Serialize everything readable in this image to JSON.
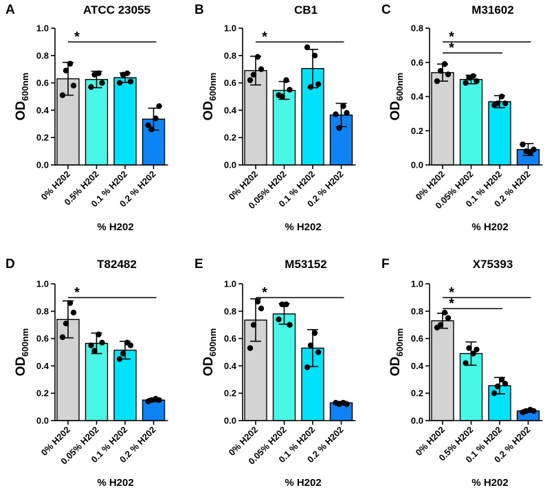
{
  "colors": {
    "bar_fills": [
      "#d3d3d3",
      "#48f7e6",
      "#00e2fa",
      "#0d83f5"
    ],
    "stroke": "#000000"
  },
  "chart_data": [
    {
      "panel": "A",
      "title": "ATCC 23055",
      "type": "bar",
      "categories": [
        "0% H202",
        "0.5% H202",
        "0.1 % H202",
        "0.2 % H202"
      ],
      "values": [
        0.63,
        0.625,
        0.638,
        0.335
      ],
      "errors": [
        0.12,
        0.06,
        0.035,
        0.08
      ],
      "points": [
        [
          0.51,
          0.69,
          0.74,
          0.58
        ],
        [
          0.57,
          0.66,
          0.67,
          0.6
        ],
        [
          0.6,
          0.66,
          0.67,
          0.61
        ],
        [
          0.29,
          0.26,
          0.34,
          0.43
        ]
      ],
      "xlabel": "% H202",
      "ylabel": "OD",
      "ylabel_sub": "600nm",
      "ylim": [
        0,
        1.0
      ],
      "yticks": [
        0.0,
        0.2,
        0.4,
        0.6,
        0.8,
        1.0
      ],
      "ytick_labels": [
        "0.0",
        "0.2",
        "0.4",
        "0.6",
        "0.8",
        "1.0"
      ],
      "significance": [
        {
          "from": 0,
          "to": 3,
          "label": "*"
        }
      ]
    },
    {
      "panel": "B",
      "title": "CB1",
      "type": "bar",
      "categories": [
        "0% H202",
        "0.05% H202",
        "0.1 % H202",
        "0.2 % H202"
      ],
      "values": [
        0.69,
        0.545,
        0.705,
        0.365
      ],
      "errors": [
        0.105,
        0.065,
        0.14,
        0.085
      ],
      "points": [
        [
          0.62,
          0.66,
          0.79,
          0.7
        ],
        [
          0.51,
          0.5,
          0.62,
          0.55
        ],
        [
          0.86,
          0.57,
          0.8,
          0.59
        ],
        [
          0.37,
          0.27,
          0.43,
          0.38
        ]
      ],
      "xlabel": "% H202",
      "ylabel": "OD",
      "ylabel_sub": "600nm",
      "ylim": [
        0,
        1.0
      ],
      "yticks": [
        0.0,
        0.2,
        0.4,
        0.6,
        0.8,
        1.0
      ],
      "ytick_labels": [
        "0.0",
        "0.2",
        "0.4",
        "0.6",
        "0.8",
        "1.0"
      ],
      "significance": [
        {
          "from": 0,
          "to": 3,
          "label": "*"
        }
      ]
    },
    {
      "panel": "C",
      "title": "M31602",
      "type": "bar",
      "categories": [
        "0% H202",
        "0.05% H202",
        "0.1 % H202",
        "0.2 % H202"
      ],
      "values": [
        0.54,
        0.5,
        0.37,
        0.09
      ],
      "errors": [
        0.05,
        0.025,
        0.035,
        0.035
      ],
      "points": [
        [
          0.49,
          0.55,
          0.59,
          0.53
        ],
        [
          0.48,
          0.51,
          0.52,
          0.49
        ],
        [
          0.35,
          0.36,
          0.4,
          0.36
        ],
        [
          0.12,
          0.08,
          0.07,
          0.09
        ]
      ],
      "xlabel": "% H202",
      "ylabel": "OD",
      "ylabel_sub": "600nm",
      "ylim": [
        0,
        0.8
      ],
      "yticks": [
        0.0,
        0.2,
        0.4,
        0.6,
        0.8
      ],
      "ytick_labels": [
        "0.0",
        "0.2",
        "0.4",
        "0.6",
        "0.8"
      ],
      "significance": [
        {
          "from": 0,
          "to": 3,
          "label": "*"
        },
        {
          "from": 0,
          "to": 2,
          "label": "*"
        }
      ]
    },
    {
      "panel": "D",
      "title": "T82482",
      "type": "bar",
      "categories": [
        "0% H202",
        "0.05% H202",
        "0.1 % H202",
        "0.2 % H202"
      ],
      "values": [
        0.74,
        0.565,
        0.515,
        0.15
      ],
      "errors": [
        0.135,
        0.075,
        0.065,
        0.012
      ],
      "points": [
        [
          0.61,
          0.71,
          0.86,
          0.79
        ],
        [
          0.55,
          0.51,
          0.63,
          0.57
        ],
        [
          0.45,
          0.49,
          0.57,
          0.55
        ],
        [
          0.14,
          0.15,
          0.16,
          0.15
        ]
      ],
      "xlabel": "% H202",
      "ylabel": "OD",
      "ylabel_sub": "600nm",
      "ylim": [
        0,
        1.0
      ],
      "yticks": [
        0.0,
        0.2,
        0.4,
        0.6,
        0.8,
        1.0
      ],
      "ytick_labels": [
        "0.0",
        "0.2",
        "0.4",
        "0.6",
        "0.8",
        "1.0"
      ],
      "significance": [
        {
          "from": 0,
          "to": 3,
          "label": "*"
        }
      ]
    },
    {
      "panel": "E",
      "title": "M53152",
      "type": "bar",
      "categories": [
        "0% H202",
        "0.05% H202",
        "0.1 % H202",
        "0.2 % H202"
      ],
      "values": [
        0.735,
        0.78,
        0.53,
        0.13
      ],
      "errors": [
        0.155,
        0.075,
        0.135,
        0.01
      ],
      "points": [
        [
          0.53,
          0.7,
          0.87,
          0.82
        ],
        [
          0.74,
          0.85,
          0.85,
          0.7
        ],
        [
          0.39,
          0.55,
          0.64,
          0.5
        ],
        [
          0.13,
          0.12,
          0.13,
          0.12
        ]
      ],
      "xlabel": "% H202",
      "ylabel": "OD",
      "ylabel_sub": "600nm",
      "ylim": [
        0,
        1.0
      ],
      "yticks": [
        0.0,
        0.2,
        0.4,
        0.6,
        0.8,
        1.0
      ],
      "ytick_labels": [
        "0.0",
        "0.2",
        "0.4",
        "0.6",
        "0.8",
        "1.0"
      ],
      "significance": [
        {
          "from": 0,
          "to": 3,
          "label": "*"
        }
      ]
    },
    {
      "panel": "F",
      "title": "X75393",
      "type": "bar",
      "categories": [
        "0% H202",
        "0.5% H202",
        "0.1 % H202",
        "0.2 % H202"
      ],
      "values": [
        0.73,
        0.49,
        0.255,
        0.07
      ],
      "errors": [
        0.055,
        0.085,
        0.06,
        0.01
      ],
      "points": [
        [
          0.68,
          0.7,
          0.79,
          0.75
        ],
        [
          0.42,
          0.53,
          0.49,
          0.52
        ],
        [
          0.2,
          0.25,
          0.3,
          0.27
        ],
        [
          0.06,
          0.07,
          0.08,
          0.07
        ]
      ],
      "xlabel": "% H202",
      "ylabel": "OD",
      "ylabel_sub": "600nm",
      "ylim": [
        0,
        1.0
      ],
      "yticks": [
        0.0,
        0.2,
        0.4,
        0.6,
        0.8,
        1.0
      ],
      "ytick_labels": [
        "0.0",
        "0.2",
        "0.4",
        "0.6",
        "0.8",
        "1.0"
      ],
      "significance": [
        {
          "from": 0,
          "to": 3,
          "label": "*"
        },
        {
          "from": 0,
          "to": 2,
          "label": "*"
        }
      ]
    }
  ]
}
